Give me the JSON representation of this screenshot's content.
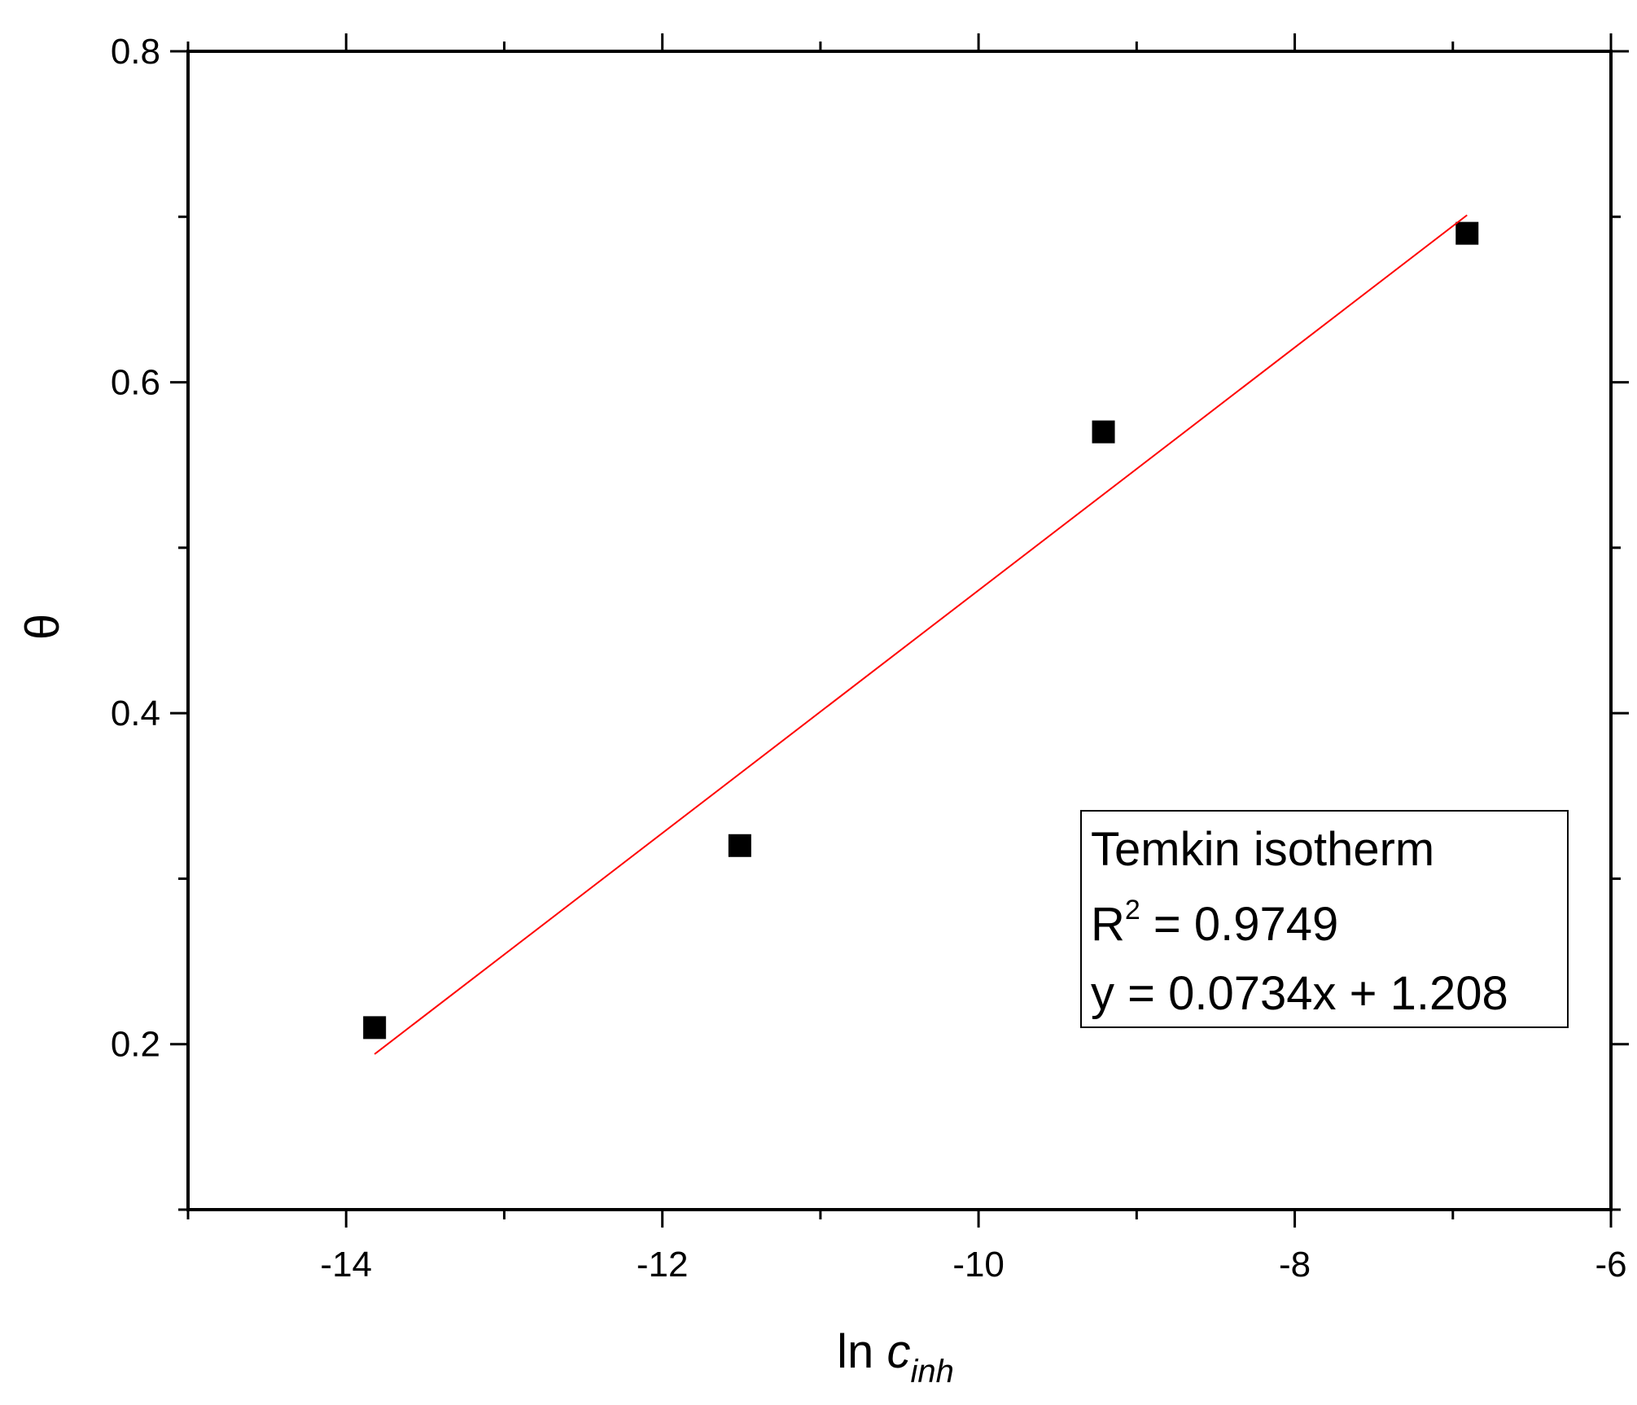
{
  "chart_data": {
    "type": "scatter",
    "xlabel": {
      "main": "ln ",
      "italic": "c",
      "subscript": "inh"
    },
    "ylabel": "θ",
    "xlim": [
      -15,
      -6
    ],
    "ylim": [
      0.1,
      0.8
    ],
    "x_ticks": [
      -14,
      -12,
      -10,
      -8,
      -6
    ],
    "x_tick_labels": [
      "-14",
      "-12",
      "-10",
      "-8",
      "-6"
    ],
    "x_minor_ticks": [
      -15,
      -13,
      -11,
      -9,
      -7
    ],
    "y_ticks": [
      0.2,
      0.4,
      0.6,
      0.8
    ],
    "y_tick_labels": [
      "0.2",
      "0.4",
      "0.6",
      "0.8"
    ],
    "y_minor_ticks": [
      0.1,
      0.3,
      0.5,
      0.7
    ],
    "grid": false,
    "series": [
      {
        "type": "scatter",
        "marker": "square",
        "color": "#000000",
        "x": [
          -13.82,
          -11.51,
          -9.21,
          -6.91
        ],
        "y": [
          0.21,
          0.32,
          0.57,
          0.69
        ]
      },
      {
        "type": "line",
        "color": "#ff0000",
        "x": [
          -13.82,
          -6.91
        ],
        "y": [
          0.194,
          0.701
        ]
      }
    ],
    "legend_box": {
      "position": "bottom-right",
      "line1": "Temkin isotherm",
      "r2_prefix": "R",
      "r2_sup": "2",
      "r2_suffix": " = 0.9749",
      "line3": "y = 0.0734x + 1.208"
    }
  }
}
